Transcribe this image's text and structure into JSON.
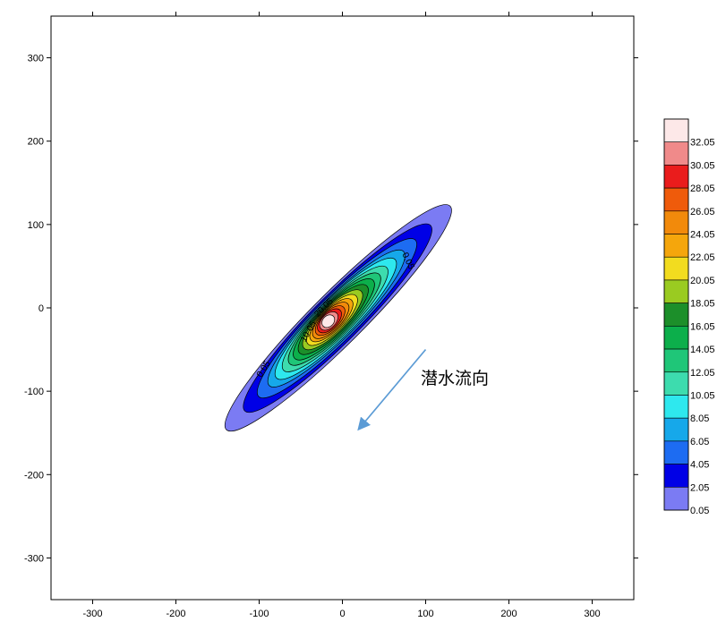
{
  "chart_data": {
    "type": "contour",
    "xlim": [
      -350,
      350
    ],
    "ylim": [
      -350,
      350
    ],
    "x_ticks": [
      -300,
      -200,
      -100,
      0,
      100,
      200,
      300
    ],
    "y_ticks": [
      -300,
      -200,
      -100,
      0,
      100,
      200,
      300
    ],
    "plume": {
      "center": [
        -5,
        -12
      ],
      "axis_angle_deg": 45,
      "major_half_length": 190,
      "minor_half_width": 27,
      "peak_offset": [
        -12,
        -4
      ]
    },
    "levels": [
      {
        "value": "0.05",
        "color": "#7b7bf3",
        "outer_scale": 1.0
      },
      {
        "value": "2.05",
        "color": "#0000e6",
        "outer_scale": 0.83
      },
      {
        "value": "4.05",
        "color": "#1d6cf2",
        "outer_scale": 0.7
      },
      {
        "value": "6.05",
        "color": "#16a8ea",
        "outer_scale": 0.6
      },
      {
        "value": "8.05",
        "color": "#2ee8ee",
        "outer_scale": 0.53
      },
      {
        "value": "10.05",
        "color": "#3ddcae",
        "outer_scale": 0.46
      },
      {
        "value": "12.05",
        "color": "#1fc678",
        "outer_scale": 0.4
      },
      {
        "value": "14.05",
        "color": "#0caf4b",
        "outer_scale": 0.35
      },
      {
        "value": "16.05",
        "color": "#1c8f2a",
        "outer_scale": 0.3
      },
      {
        "value": "18.05",
        "color": "#9acb21",
        "outer_scale": 0.255
      },
      {
        "value": "20.05",
        "color": "#f2dc1f",
        "outer_scale": 0.215
      },
      {
        "value": "22.05",
        "color": "#f5a60c",
        "outer_scale": 0.18
      },
      {
        "value": "24.05",
        "color": "#f28a0b",
        "outer_scale": 0.15
      },
      {
        "value": "26.05",
        "color": "#ef5b0b",
        "outer_scale": 0.12
      },
      {
        "value": "28.05",
        "color": "#ea1c1c",
        "outer_scale": 0.095
      },
      {
        "value": "30.05",
        "color": "#f08a8a",
        "outer_scale": 0.07
      },
      {
        "value": "32.05",
        "color": "#fde8e8",
        "outer_scale": 0.045
      }
    ],
    "contour_labels": [
      {
        "text": "0.05",
        "x": -92,
        "y": -75,
        "angle_deg": -58
      },
      {
        "text": "0.05",
        "x": 76,
        "y": 55,
        "angle_deg": 65
      },
      {
        "text": "10.05",
        "x": -38,
        "y": -30,
        "angle_deg": -60
      },
      {
        "text": "20.05",
        "x": -20,
        "y": -2,
        "angle_deg": -45
      }
    ],
    "annotation": {
      "text": "潜水流向",
      "arrow_from": [
        100,
        -50
      ],
      "arrow_to": [
        20,
        -145
      ],
      "color": "#5b9bd5"
    }
  }
}
